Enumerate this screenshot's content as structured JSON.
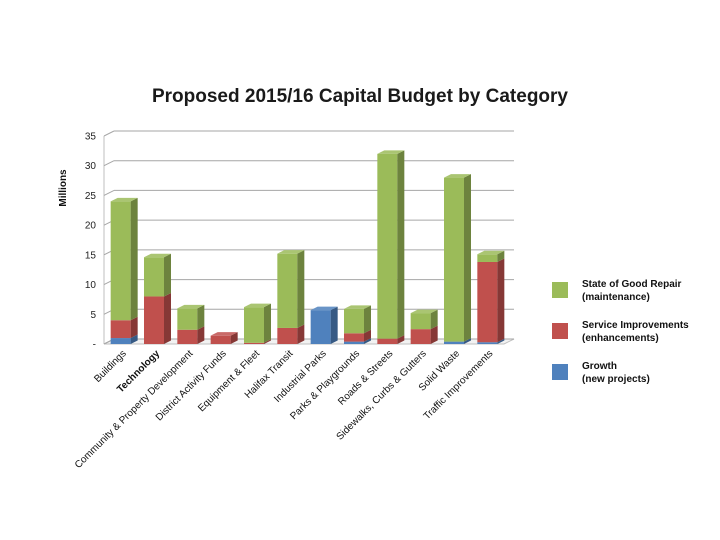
{
  "chart_data": {
    "type": "bar",
    "stacked": true,
    "title": "Proposed 2015/16 Capital Budget by Category",
    "ylabel": "Millions",
    "ylim": [
      0,
      35
    ],
    "yticks": [
      "-",
      "5",
      "10",
      "15",
      "20",
      "25",
      "30",
      "35"
    ],
    "grid": true,
    "legend_position": "right",
    "categories": [
      "Buildings",
      "Technology",
      "Community & Property Development",
      "District Activity Funds",
      "Equipment & Fleet",
      "Halifax Transit",
      "Industrial Parks",
      "Parks & Playgrounds",
      "Roads & Streets",
      "Sidewalks, Curbs & Gutters",
      "Solid Waste",
      "Traffic Improvements"
    ],
    "bold_categories": [
      "Technology"
    ],
    "series": [
      {
        "name": "Growth",
        "label_lines": [
          "Growth",
          "(new projects)"
        ],
        "color": "#4f81bd",
        "values": [
          1.0,
          0,
          0,
          0,
          0,
          0,
          5.7,
          0.4,
          0,
          0,
          0.4,
          0.3
        ]
      },
      {
        "name": "Service Improvements",
        "label_lines": [
          "Service Improvements",
          "(enhancements)"
        ],
        "color": "#c0504d",
        "values": [
          3.0,
          8.0,
          2.4,
          1.4,
          0.2,
          2.7,
          0,
          1.4,
          0.9,
          2.5,
          0,
          13.5
        ]
      },
      {
        "name": "State of Good Repair",
        "label_lines": [
          "State of Good Repair",
          "(maintenance)"
        ],
        "color": "#9bbb59",
        "values": [
          20.0,
          6.6,
          3.6,
          0,
          6.0,
          12.5,
          0,
          4.1,
          31.1,
          2.7,
          27.6,
          1.3
        ]
      }
    ],
    "legend_order": [
      "State of Good Repair",
      "Service Improvements",
      "Growth"
    ]
  }
}
